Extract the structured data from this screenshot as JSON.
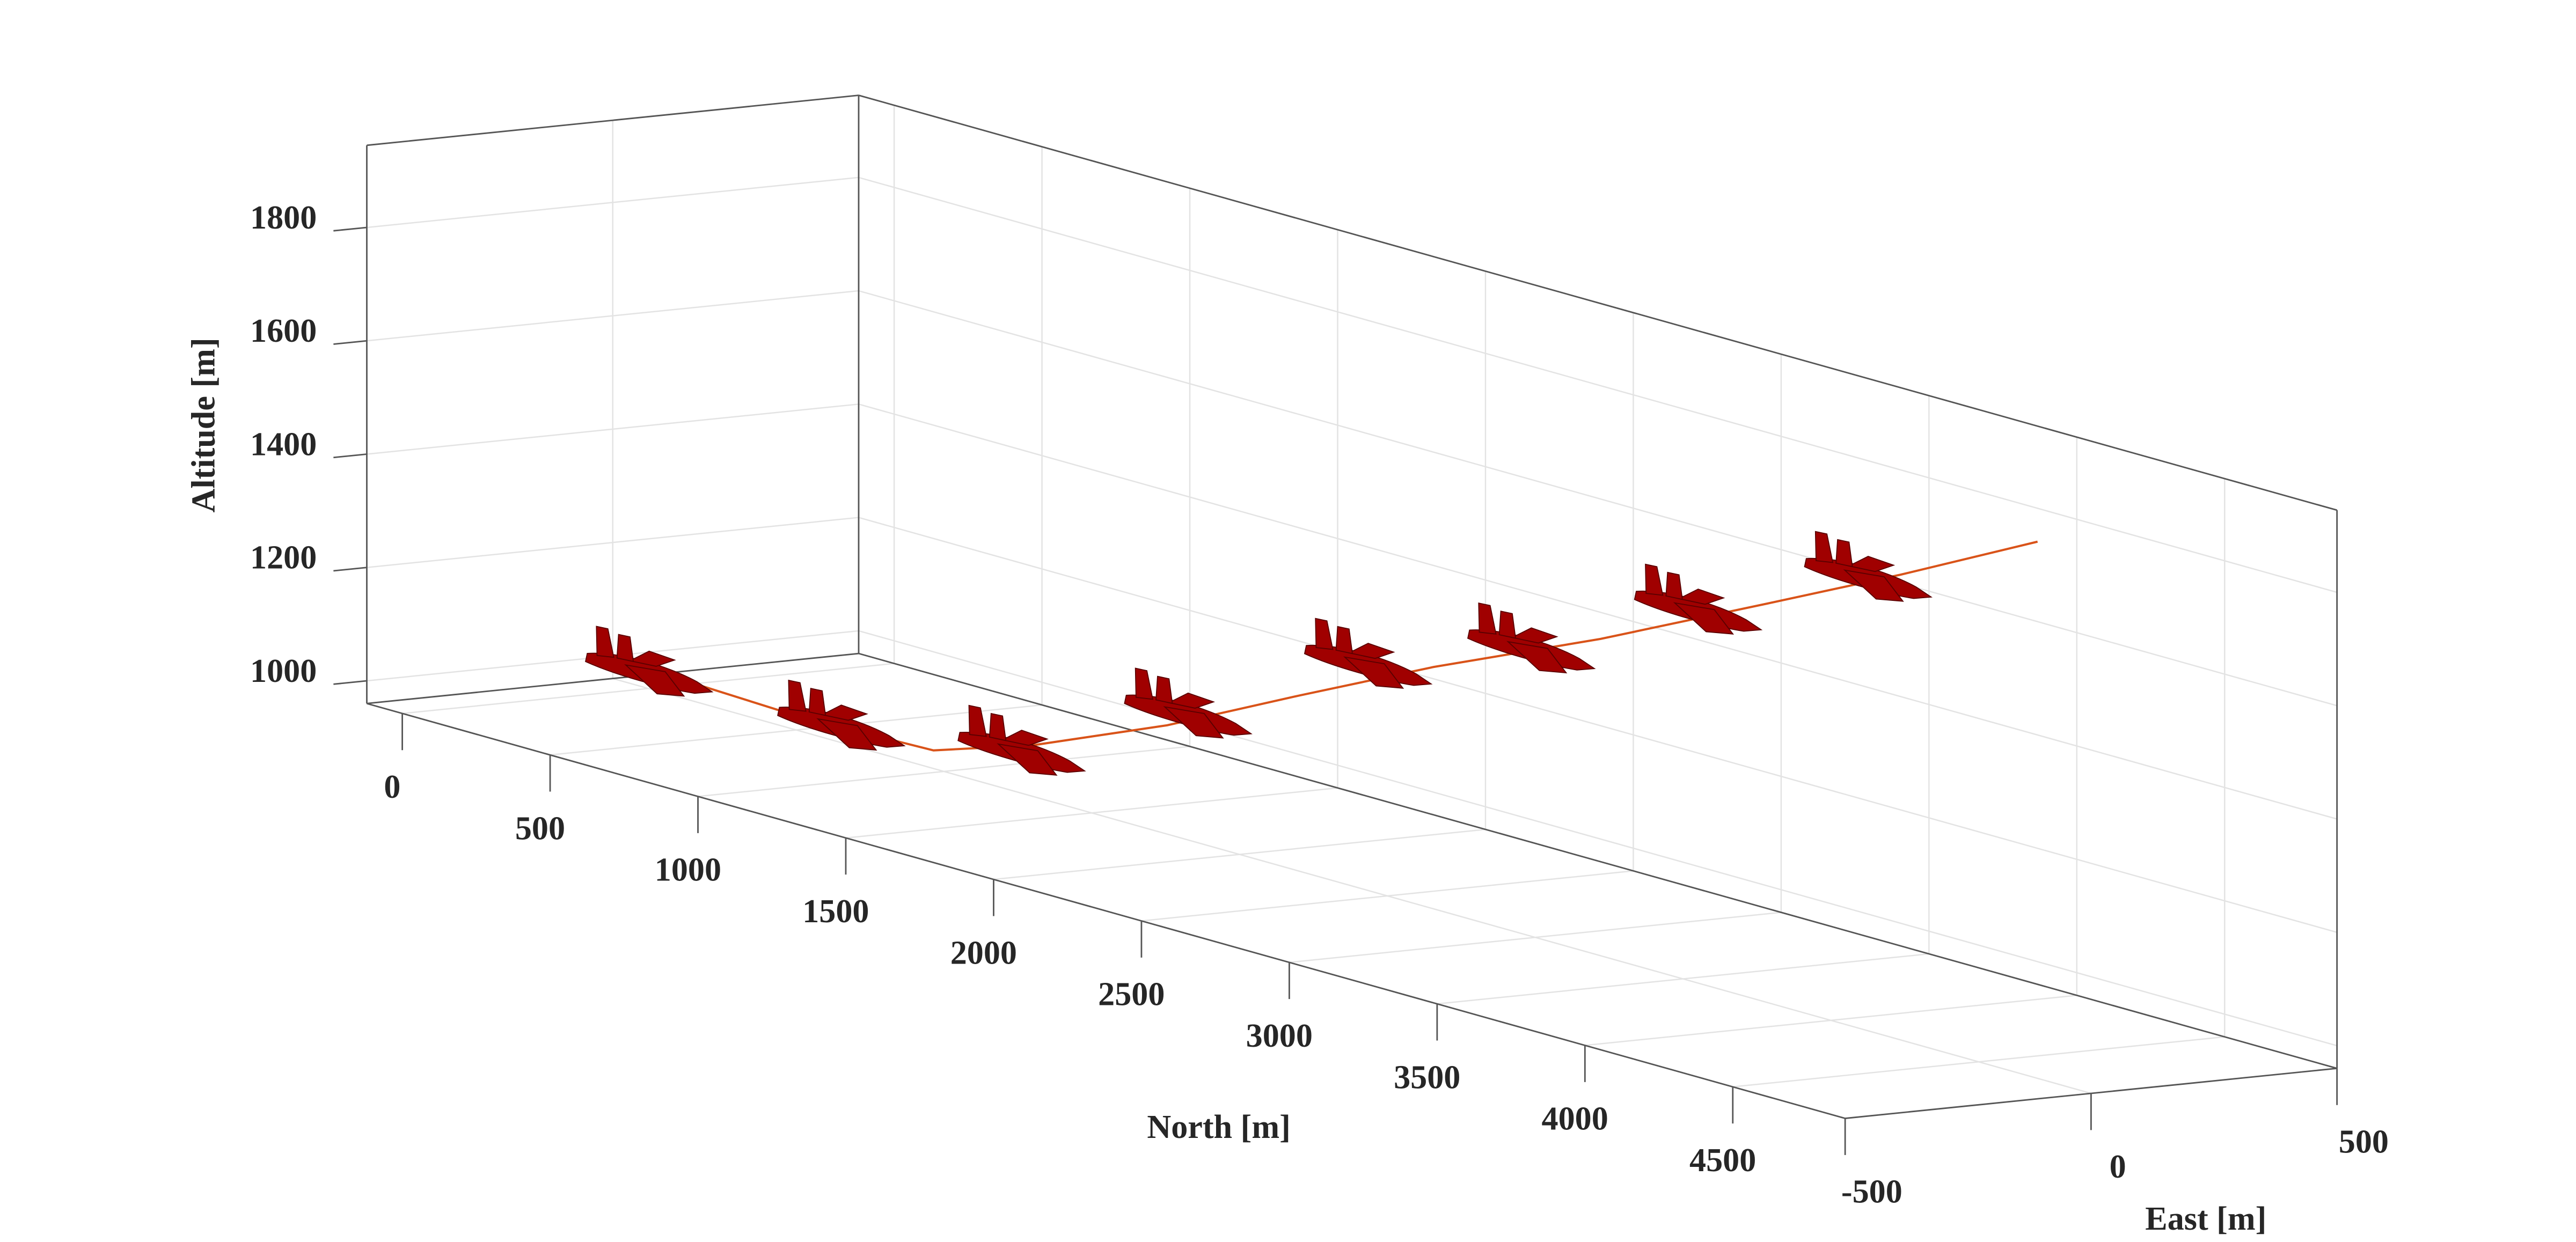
{
  "chart_data": {
    "type": "line3d",
    "xlabel": "North [m]",
    "ylabel": "East [m]",
    "zlabel": "Altitude [m]",
    "xlim": [
      -120,
      4880
    ],
    "ylim": [
      -500,
      500
    ],
    "zlim": [
      960,
      1945
    ],
    "xticks": [
      0,
      500,
      1000,
      1500,
      2000,
      2500,
      3000,
      3500,
      4000,
      4500
    ],
    "yticks": [
      -500,
      0,
      500
    ],
    "zticks": [
      1000,
      1200,
      1400,
      1600,
      1800
    ],
    "grid": true,
    "series": [
      {
        "color": "#d95319",
        "x": [
          63,
          514,
          965,
          1304,
          1755,
          2206,
          2657,
          3221,
          3785,
          4236,
          4699
        ],
        "y": [
          0,
          0,
          0,
          0,
          0,
          0,
          0,
          0,
          0,
          0,
          0
        ],
        "z": [
          993,
          985,
          992,
          1051,
          1152,
          1271,
          1387,
          1519,
          1664,
          1781,
          1907
        ]
      },
      {
        "marker": "aircraft",
        "color": "#a00000",
        "x": [
          0,
          650,
          1260,
          1823,
          2432,
          2984,
          3548,
          4123
        ],
        "y": [
          0,
          0,
          0,
          0,
          0,
          0,
          0,
          0
        ],
        "z": [
          990,
          990,
          1035,
          1183,
          1360,
          1468,
          1619,
          1761
        ]
      }
    ]
  }
}
